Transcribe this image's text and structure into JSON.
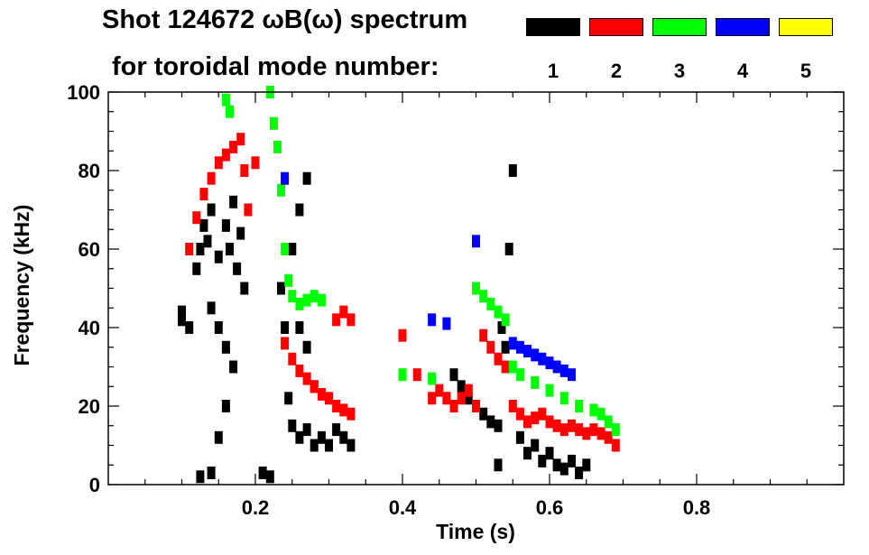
{
  "chart_data": {
    "type": "scatter",
    "title": "Shot 124672 ωB(ω) spectrum",
    "subtitle": "for toroidal mode number:",
    "xlabel": "Time (s)",
    "ylabel": "Frequency (kHz)",
    "xlim": [
      0.0,
      1.0
    ],
    "ylim": [
      0,
      100
    ],
    "x_ticks": [
      0.2,
      0.4,
      0.6,
      0.8
    ],
    "x_tick_labels": [
      "0.2",
      "0.4",
      "0.6",
      "0.8"
    ],
    "y_ticks": [
      0,
      20,
      40,
      60,
      80,
      100
    ],
    "y_tick_labels": [
      "0",
      "20",
      "40",
      "60",
      "80",
      "100"
    ],
    "legend": [
      {
        "label": "1",
        "color": "#000000"
      },
      {
        "label": "2",
        "color": "#ff0000"
      },
      {
        "label": "3",
        "color": "#00ff00"
      },
      {
        "label": "4",
        "color": "#0000ff"
      },
      {
        "label": "5",
        "color": "#ffff00"
      }
    ],
    "series": [
      {
        "name": "n=1",
        "color": "#000000",
        "points": [
          [
            0.1,
            44
          ],
          [
            0.1,
            42
          ],
          [
            0.11,
            40
          ],
          [
            0.12,
            55
          ],
          [
            0.125,
            60
          ],
          [
            0.13,
            66
          ],
          [
            0.135,
            62
          ],
          [
            0.14,
            70
          ],
          [
            0.15,
            58
          ],
          [
            0.16,
            66
          ],
          [
            0.165,
            60
          ],
          [
            0.17,
            72
          ],
          [
            0.175,
            55
          ],
          [
            0.18,
            64
          ],
          [
            0.185,
            50
          ],
          [
            0.14,
            45
          ],
          [
            0.15,
            40
          ],
          [
            0.16,
            35
          ],
          [
            0.17,
            30
          ],
          [
            0.16,
            20
          ],
          [
            0.15,
            12
          ],
          [
            0.125,
            2
          ],
          [
            0.14,
            3
          ],
          [
            0.21,
            3
          ],
          [
            0.22,
            2
          ],
          [
            0.235,
            50
          ],
          [
            0.24,
            40
          ],
          [
            0.245,
            22
          ],
          [
            0.25,
            15
          ],
          [
            0.26,
            12
          ],
          [
            0.27,
            14
          ],
          [
            0.28,
            10
          ],
          [
            0.29,
            12
          ],
          [
            0.3,
            10
          ],
          [
            0.31,
            14
          ],
          [
            0.32,
            12
          ],
          [
            0.33,
            10
          ],
          [
            0.28,
            25
          ],
          [
            0.27,
            35
          ],
          [
            0.26,
            40
          ],
          [
            0.25,
            60
          ],
          [
            0.26,
            70
          ],
          [
            0.27,
            78
          ],
          [
            0.47,
            28
          ],
          [
            0.48,
            25
          ],
          [
            0.49,
            22
          ],
          [
            0.5,
            20
          ],
          [
            0.51,
            18
          ],
          [
            0.52,
            16
          ],
          [
            0.53,
            15
          ],
          [
            0.535,
            40
          ],
          [
            0.54,
            35
          ],
          [
            0.545,
            60
          ],
          [
            0.55,
            80
          ],
          [
            0.53,
            5
          ],
          [
            0.56,
            12
          ],
          [
            0.57,
            8
          ],
          [
            0.58,
            10
          ],
          [
            0.59,
            6
          ],
          [
            0.6,
            8
          ],
          [
            0.61,
            5
          ],
          [
            0.62,
            4
          ],
          [
            0.63,
            6
          ],
          [
            0.64,
            3
          ],
          [
            0.65,
            5
          ]
        ]
      },
      {
        "name": "n=2",
        "color": "#ff0000",
        "points": [
          [
            0.11,
            60
          ],
          [
            0.12,
            68
          ],
          [
            0.13,
            74
          ],
          [
            0.14,
            78
          ],
          [
            0.15,
            82
          ],
          [
            0.16,
            84
          ],
          [
            0.17,
            86
          ],
          [
            0.18,
            88
          ],
          [
            0.185,
            80
          ],
          [
            0.19,
            70
          ],
          [
            0.2,
            82
          ],
          [
            0.24,
            36
          ],
          [
            0.25,
            32
          ],
          [
            0.26,
            29
          ],
          [
            0.27,
            27
          ],
          [
            0.28,
            25
          ],
          [
            0.29,
            23
          ],
          [
            0.3,
            22
          ],
          [
            0.31,
            20
          ],
          [
            0.32,
            19
          ],
          [
            0.33,
            18
          ],
          [
            0.31,
            42
          ],
          [
            0.32,
            44
          ],
          [
            0.33,
            42
          ],
          [
            0.4,
            38
          ],
          [
            0.42,
            28
          ],
          [
            0.44,
            22
          ],
          [
            0.45,
            24
          ],
          [
            0.46,
            22
          ],
          [
            0.47,
            20
          ],
          [
            0.48,
            22
          ],
          [
            0.49,
            24
          ],
          [
            0.5,
            20
          ],
          [
            0.51,
            38
          ],
          [
            0.52,
            35
          ],
          [
            0.53,
            32
          ],
          [
            0.54,
            30
          ],
          [
            0.55,
            20
          ],
          [
            0.56,
            18
          ],
          [
            0.57,
            16
          ],
          [
            0.58,
            17
          ],
          [
            0.59,
            18
          ],
          [
            0.6,
            16
          ],
          [
            0.61,
            15
          ],
          [
            0.62,
            14
          ],
          [
            0.63,
            15
          ],
          [
            0.64,
            14
          ],
          [
            0.65,
            13
          ],
          [
            0.66,
            14
          ],
          [
            0.67,
            13
          ],
          [
            0.68,
            12
          ],
          [
            0.69,
            10
          ]
        ]
      },
      {
        "name": "n=3",
        "color": "#00ff00",
        "points": [
          [
            0.16,
            98
          ],
          [
            0.165,
            95
          ],
          [
            0.22,
            100
          ],
          [
            0.225,
            92
          ],
          [
            0.23,
            86
          ],
          [
            0.235,
            75
          ],
          [
            0.24,
            60
          ],
          [
            0.245,
            52
          ],
          [
            0.25,
            48
          ],
          [
            0.26,
            46
          ],
          [
            0.27,
            47
          ],
          [
            0.28,
            48
          ],
          [
            0.29,
            47
          ],
          [
            0.4,
            28
          ],
          [
            0.44,
            27
          ],
          [
            0.5,
            50
          ],
          [
            0.51,
            48
          ],
          [
            0.52,
            46
          ],
          [
            0.53,
            44
          ],
          [
            0.54,
            42
          ],
          [
            0.55,
            30
          ],
          [
            0.56,
            28
          ],
          [
            0.58,
            26
          ],
          [
            0.6,
            24
          ],
          [
            0.62,
            22
          ],
          [
            0.64,
            20
          ],
          [
            0.66,
            19
          ],
          [
            0.67,
            18
          ],
          [
            0.68,
            16
          ],
          [
            0.69,
            14
          ]
        ]
      },
      {
        "name": "n=4",
        "color": "#0000ff",
        "points": [
          [
            0.24,
            78
          ],
          [
            0.44,
            42
          ],
          [
            0.46,
            41
          ],
          [
            0.5,
            62
          ],
          [
            0.55,
            36
          ],
          [
            0.56,
            35
          ],
          [
            0.57,
            34
          ],
          [
            0.58,
            33
          ],
          [
            0.59,
            32
          ],
          [
            0.6,
            31
          ],
          [
            0.61,
            30
          ],
          [
            0.62,
            29
          ],
          [
            0.63,
            28
          ]
        ]
      }
    ]
  }
}
